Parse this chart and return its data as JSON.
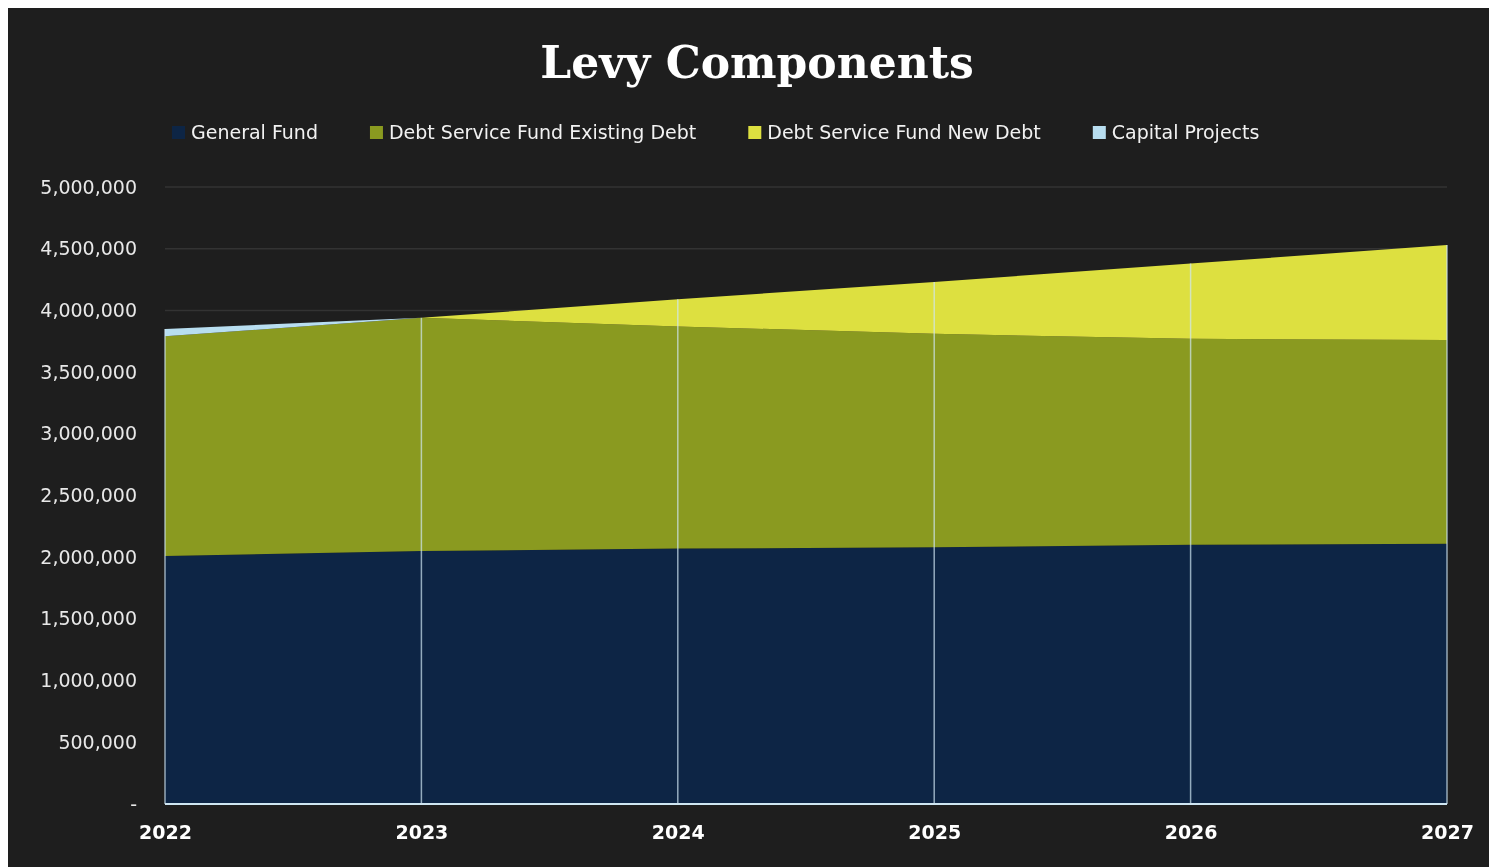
{
  "chart_data": {
    "type": "area",
    "stacked": true,
    "title": "Levy Components",
    "categories": [
      "2022",
      "2023",
      "2024",
      "2025",
      "2026",
      "2027"
    ],
    "series": [
      {
        "name": "General Fund",
        "color": "#0d2545",
        "values": [
          2010000,
          2050000,
          2070000,
          2080000,
          2100000,
          2110000
        ]
      },
      {
        "name": "Debt Service Fund Existing Debt",
        "color": "#8a9a20",
        "values": [
          1780000,
          1890000,
          1800000,
          1730000,
          1670000,
          1650000
        ]
      },
      {
        "name": "Debt Service Fund New Debt",
        "color": "#dde040",
        "values": [
          0,
          0,
          220000,
          420000,
          610000,
          770000
        ]
      },
      {
        "name": "Capital Projects",
        "color": "#b8def0",
        "values": [
          60000,
          0,
          0,
          0,
          0,
          0
        ]
      }
    ],
    "ylim": [
      0,
      5000000
    ],
    "yticks": [
      {
        "value": 0,
        "label": "-"
      },
      {
        "value": 500000,
        "label": "500,000"
      },
      {
        "value": 1000000,
        "label": "1,000,000"
      },
      {
        "value": 1500000,
        "label": "1,500,000"
      },
      {
        "value": 2000000,
        "label": "2,000,000"
      },
      {
        "value": 2500000,
        "label": "2,500,000"
      },
      {
        "value": 3000000,
        "label": "3,000,000"
      },
      {
        "value": 3500000,
        "label": "3,500,000"
      },
      {
        "value": 4000000,
        "label": "4,000,000"
      },
      {
        "value": 4500000,
        "label": "4,500,000"
      },
      {
        "value": 5000000,
        "label": "5,000,000"
      }
    ],
    "grid": true,
    "legend": "top"
  }
}
